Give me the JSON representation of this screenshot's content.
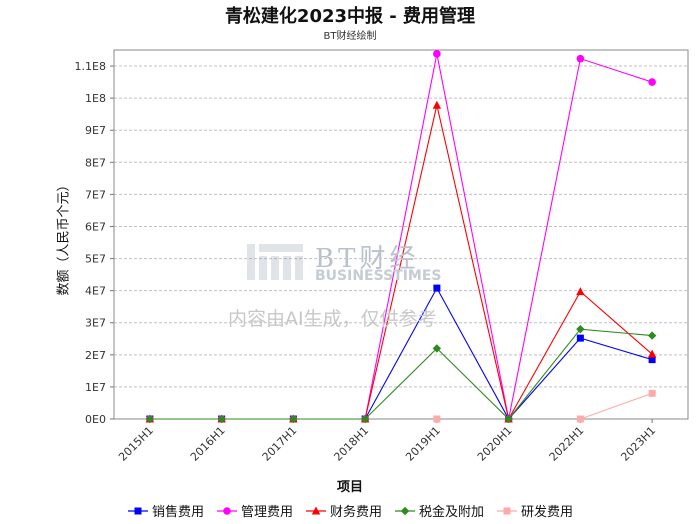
{
  "chart_data": {
    "type": "line",
    "title": "青松建化2023中报 - 费用管理",
    "subtitle": "BT财经绘制",
    "xlabel": "项目",
    "ylabel": "数额（人民币个元）",
    "categories": [
      "2015H1",
      "2016H1",
      "2017H1",
      "2018H1",
      "2019H1",
      "2020H1",
      "2022H1",
      "2023H1"
    ],
    "ylim": [
      0,
      115000000
    ],
    "y_ticks": [
      0,
      10000000,
      20000000,
      30000000,
      40000000,
      50000000,
      60000000,
      70000000,
      80000000,
      90000000,
      100000000,
      110000000
    ],
    "y_tick_labels": [
      "0E0",
      "1E7",
      "2E7",
      "3E7",
      "4E7",
      "5E7",
      "6E7",
      "7E7",
      "8E7",
      "9E7",
      "1E8",
      "1.1E8"
    ],
    "grid": true,
    "legend_position": "bottom",
    "series": [
      {
        "name": "销售费用",
        "color": "#0000ff",
        "marker": "square",
        "values": [
          0,
          0,
          0,
          0,
          40800000,
          0,
          25200000,
          18500000
        ]
      },
      {
        "name": "管理费用",
        "color": "#ff00ff",
        "marker": "circle",
        "values": [
          0,
          0,
          0,
          0,
          113800000,
          0,
          112300000,
          105000000
        ]
      },
      {
        "name": "财务费用",
        "color": "#ff0000",
        "marker": "triangle",
        "values": [
          0,
          0,
          0,
          0,
          97800000,
          0,
          39700000,
          20200000
        ]
      },
      {
        "name": "税金及附加",
        "color": "#2e8b1e",
        "marker": "diamond",
        "values": [
          0,
          0,
          0,
          0,
          22000000,
          0,
          28000000,
          26000000
        ]
      },
      {
        "name": "研发费用",
        "color": "#ffaaaa",
        "marker": "square",
        "values": [
          null,
          null,
          null,
          null,
          0,
          null,
          0,
          8000000
        ]
      }
    ]
  },
  "watermark": {
    "brand": "BT财经",
    "brand_en": "BUSINESSTIMES",
    "ai_note": "内容由AI生成，仅供参考"
  }
}
